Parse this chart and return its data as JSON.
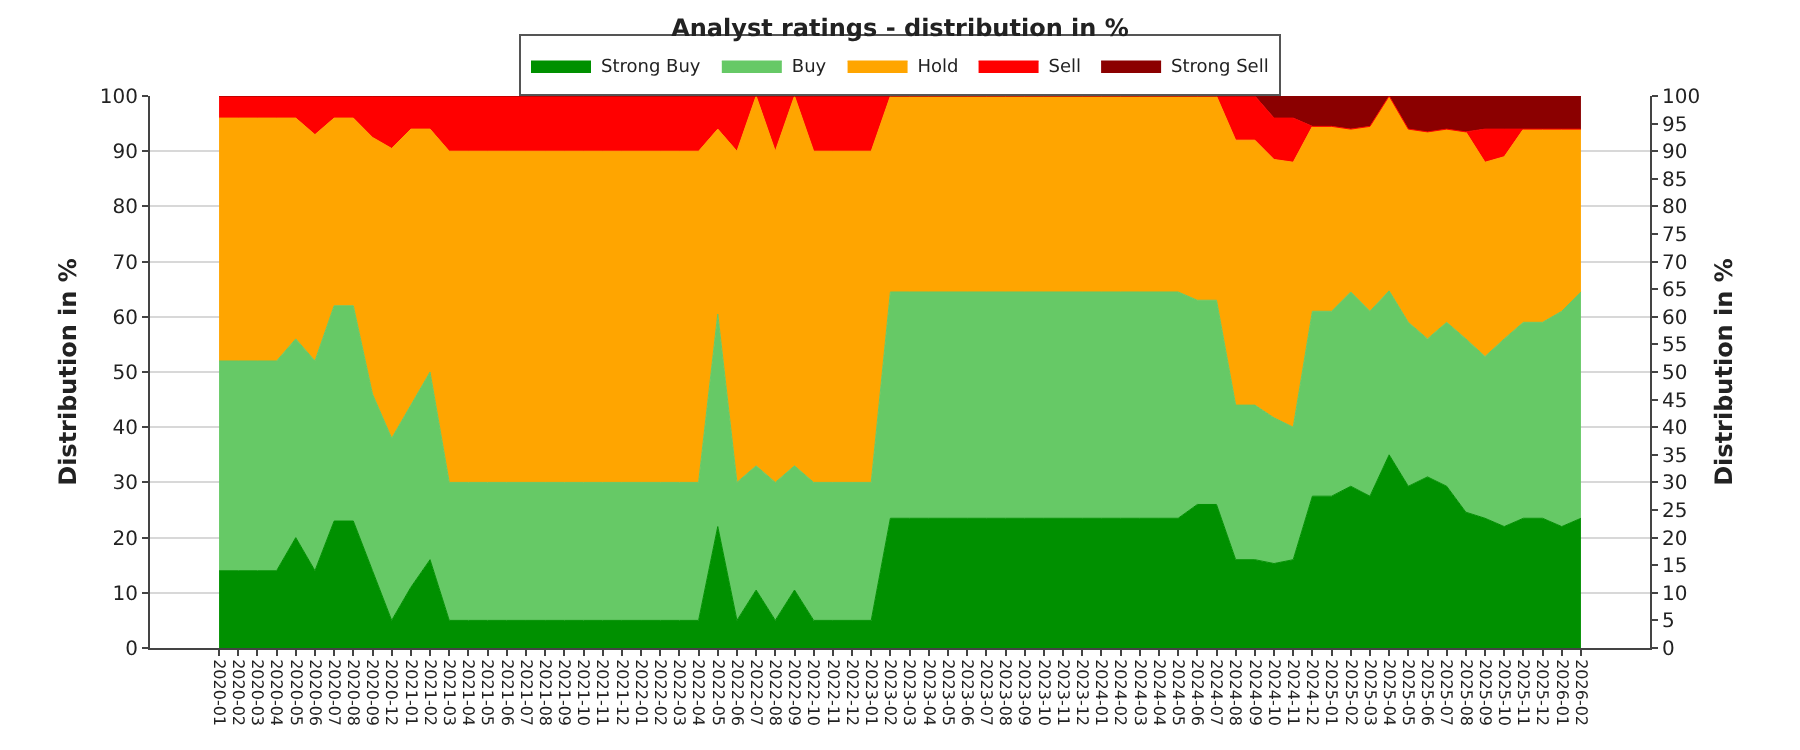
{
  "chart_data": {
    "type": "area",
    "title": "Analyst ratings - distribution in %",
    "ylabel": "Distribution in %",
    "y2label": "Distribution in %",
    "categories": [
      "2020-01",
      "2020-02",
      "2020-03",
      "2020-04",
      "2020-05",
      "2020-06",
      "2020-07",
      "2020-08",
      "2020-09",
      "2020-12",
      "2021-01",
      "2021-02",
      "2021-03",
      "2021-04",
      "2021-05",
      "2021-06",
      "2021-07",
      "2021-08",
      "2021-09",
      "2021-10",
      "2021-11",
      "2021-12",
      "2022-01",
      "2022-02",
      "2022-03",
      "2022-04",
      "2022-05",
      "2022-06",
      "2022-07",
      "2022-08",
      "2022-09",
      "2022-10",
      "2022-11",
      "2022-12",
      "2023-01",
      "2023-02",
      "2023-03",
      "2023-04",
      "2023-05",
      "2023-06",
      "2023-07",
      "2023-08",
      "2023-09",
      "2023-10",
      "2023-11",
      "2023-12",
      "2024-01",
      "2024-02",
      "2024-03",
      "2024-04",
      "2024-05",
      "2024-06",
      "2024-07",
      "2024-08",
      "2024-09",
      "2024-10",
      "2024-11",
      "2024-12",
      "2025-01",
      "2025-02",
      "2025-03",
      "2025-04",
      "2025-05",
      "2025-06",
      "2025-07",
      "2025-08",
      "2025-09",
      "2025-10",
      "2025-11",
      "2025-12",
      "2026-01",
      "2026-02"
    ],
    "stacked": true,
    "series": [
      {
        "name": "Strong Buy",
        "color": "#009000",
        "values": [
          14,
          14,
          14,
          14,
          20,
          14,
          23,
          23,
          14,
          5,
          11,
          16,
          5,
          5,
          5,
          5,
          5,
          5,
          5,
          5,
          5,
          5,
          5,
          5,
          5,
          5,
          22,
          5,
          10.5,
          5,
          10.5,
          5,
          5,
          5,
          5,
          23.5,
          23.5,
          23.5,
          23.5,
          23.5,
          23.5,
          23.5,
          23.5,
          23.5,
          23.5,
          23.5,
          23.5,
          23.5,
          23.5,
          23.5,
          23.5,
          26,
          26,
          16,
          16,
          15.3,
          16,
          27.5,
          27.5,
          29.3,
          27.5,
          35,
          29.3,
          31,
          29.3,
          24.6,
          23.5,
          22,
          23.5,
          23.5,
          22,
          23.5
        ]
      },
      {
        "name": "Buy",
        "color": "#66c966",
        "values": [
          38,
          38,
          38,
          38,
          36,
          38,
          39,
          39,
          32,
          33,
          33,
          34,
          25,
          25,
          25,
          25,
          25,
          25,
          25,
          25,
          25,
          25,
          25,
          25,
          25,
          25,
          38.5,
          25,
          22.5,
          25,
          22.5,
          25,
          25,
          25,
          25,
          41,
          41,
          41,
          41,
          41,
          41,
          41,
          41,
          41,
          41,
          41,
          41,
          41,
          41,
          41,
          41,
          37,
          37,
          28,
          28,
          26.4,
          24,
          33.5,
          33.5,
          35.2,
          33.5,
          29.7,
          29.7,
          25,
          29.7,
          31.4,
          29.3,
          34,
          35.5,
          35.5,
          39,
          41
        ]
      },
      {
        "name": "Hold",
        "color": "#ffa500",
        "values": [
          44,
          44,
          44,
          44,
          40,
          41,
          34,
          34,
          46.5,
          52.5,
          50,
          44,
          60,
          60,
          60,
          60,
          60,
          60,
          60,
          60,
          60,
          60,
          60,
          60,
          60,
          60,
          33.5,
          60,
          67,
          60,
          67,
          60,
          60,
          60,
          60,
          35.5,
          35.5,
          35.5,
          35.5,
          35.5,
          35.5,
          35.5,
          35.5,
          35.5,
          35.5,
          35.5,
          35.5,
          35.5,
          35.5,
          35.5,
          35.5,
          37,
          37,
          48,
          48,
          46.8,
          48,
          33.5,
          33.5,
          29.5,
          33.5,
          35.3,
          35,
          37.5,
          35,
          37.5,
          35.2,
          33,
          35,
          35,
          33,
          29.5
        ]
      },
      {
        "name": "Sell",
        "color": "#ff0000",
        "values": [
          4,
          4,
          4,
          4,
          4,
          7,
          4,
          4,
          7.5,
          9.5,
          6,
          6,
          10,
          10,
          10,
          10,
          10,
          10,
          10,
          10,
          10,
          10,
          10,
          10,
          10,
          10,
          6,
          10,
          0,
          10,
          0,
          10,
          10,
          10,
          10,
          0,
          0,
          0,
          0,
          0,
          0,
          0,
          0,
          0,
          0,
          0,
          0,
          0,
          0,
          0,
          0,
          0,
          0,
          8,
          8,
          7.5,
          8,
          0,
          0,
          0,
          0,
          0,
          0,
          0,
          0,
          0,
          6,
          5,
          0,
          0,
          0,
          0
        ]
      },
      {
        "name": "Strong Sell",
        "color": "#8b0000",
        "values": [
          0,
          0,
          0,
          0,
          0,
          0,
          0,
          0,
          0,
          0,
          0,
          0,
          0,
          0,
          0,
          0,
          0,
          0,
          0,
          0,
          0,
          0,
          0,
          0,
          0,
          0,
          0,
          0,
          0,
          0,
          0,
          0,
          0,
          0,
          0,
          0,
          0,
          0,
          0,
          0,
          0,
          0,
          0,
          0,
          0,
          0,
          0,
          0,
          0,
          0,
          0,
          0,
          0,
          0,
          0,
          4,
          4,
          5.5,
          5.5,
          6,
          5.5,
          0,
          6,
          6.5,
          6,
          6.5,
          6,
          6,
          6,
          6,
          6,
          6
        ]
      }
    ],
    "ylim": [
      0,
      100
    ],
    "yticks": [
      0,
      10,
      20,
      30,
      40,
      50,
      60,
      70,
      80,
      90,
      100
    ],
    "y2lim": [
      0,
      100
    ],
    "y2ticks": [
      0,
      5,
      10,
      15,
      20,
      25,
      30,
      35,
      40,
      45,
      50,
      55,
      60,
      65,
      70,
      75,
      80,
      85,
      90,
      95,
      100
    ],
    "grid": "y",
    "legend": "top"
  }
}
